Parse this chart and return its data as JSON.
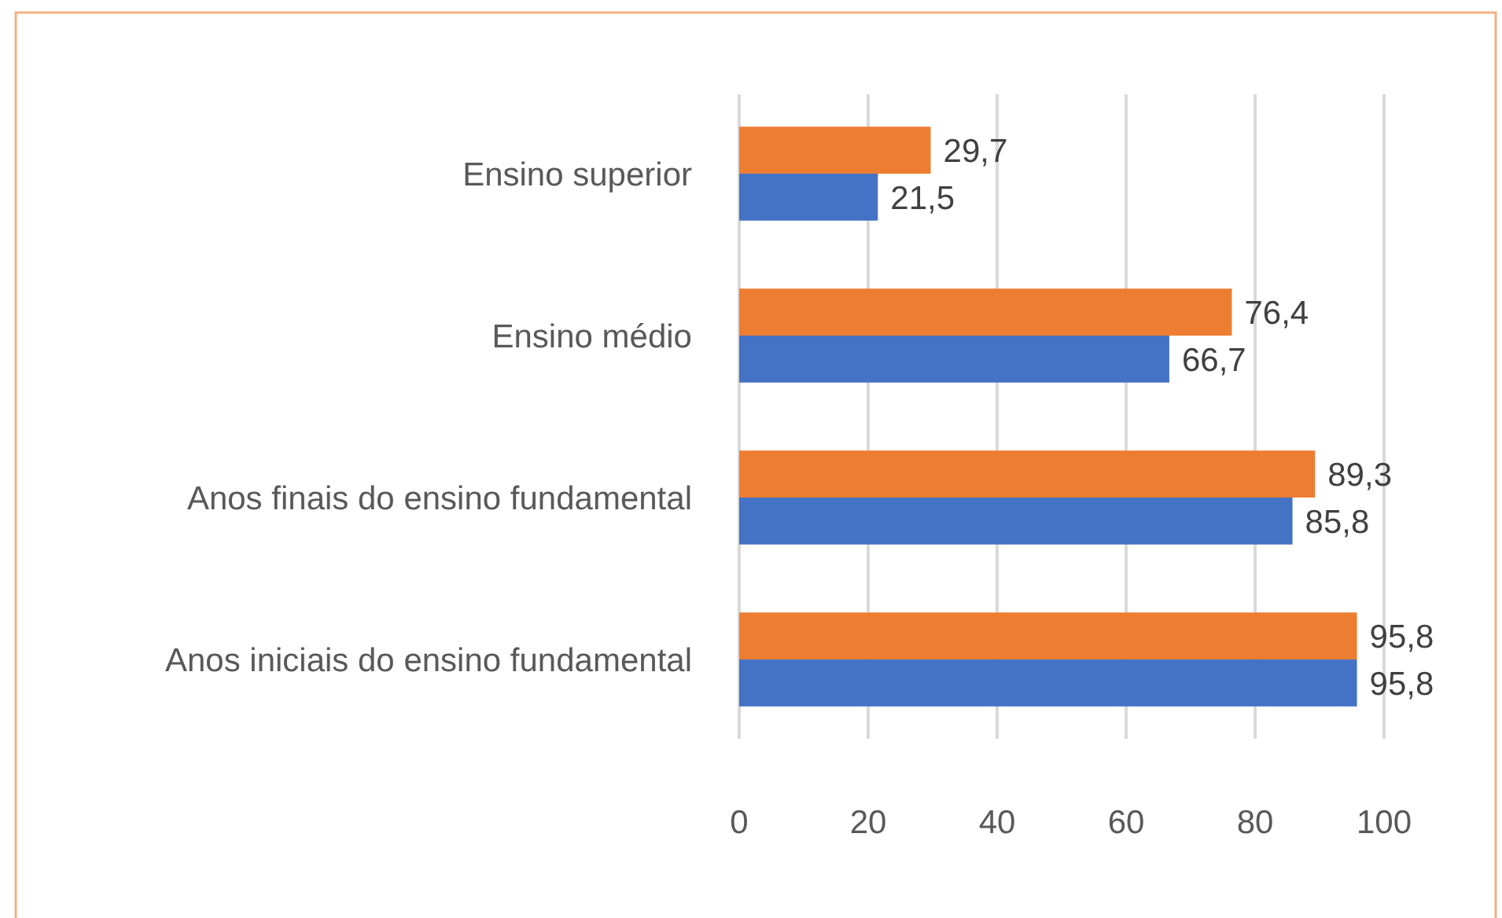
{
  "chart_data": {
    "type": "bar",
    "orientation": "horizontal",
    "categories": [
      "Ensino superior",
      "Ensino médio",
      "Anos finais do ensino fundamental",
      "Anos iniciais do ensino fundamental"
    ],
    "series": [
      {
        "color": "#ed7d31",
        "values": [
          29.7,
          76.4,
          89.3,
          95.8
        ],
        "value_labels": [
          "29,7",
          "76,4",
          "89,3",
          "95,8"
        ]
      },
      {
        "color": "#4472c4",
        "values": [
          21.5,
          66.7,
          85.8,
          95.8
        ],
        "value_labels": [
          "21,5",
          "66,7",
          "85,8",
          "95,8"
        ]
      }
    ],
    "xlim": [
      0,
      100
    ],
    "xticks": [
      0,
      20,
      40,
      60,
      80,
      100
    ],
    "grid": "x"
  }
}
